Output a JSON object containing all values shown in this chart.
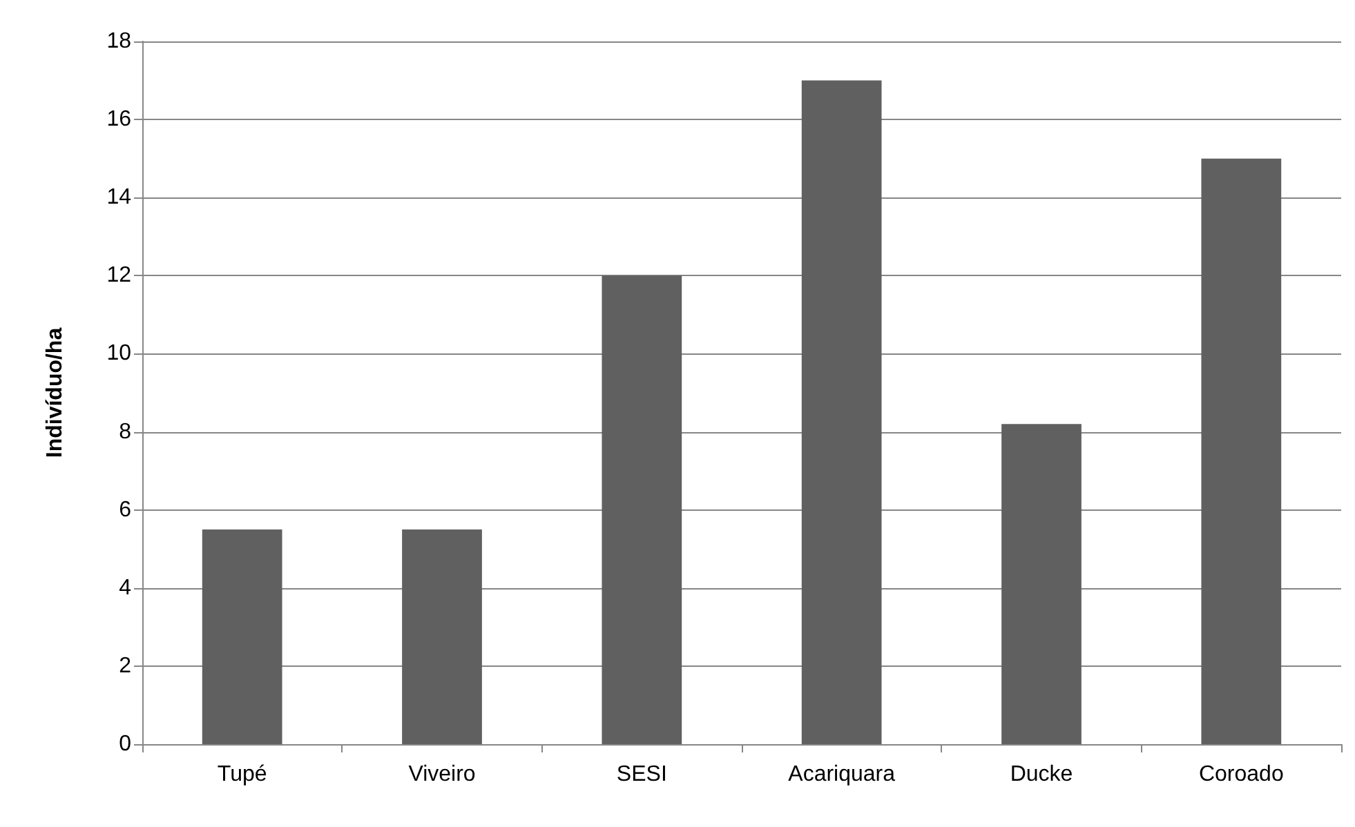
{
  "chart_data": {
    "type": "bar",
    "ylabel": "Indivíduo/ha",
    "categories": [
      "Tupé",
      "Viveiro",
      "SESI",
      "Acariquara",
      "Ducke",
      "Coroado"
    ],
    "values": [
      5.5,
      5.5,
      12,
      17,
      8.2,
      15
    ],
    "color": "#606060",
    "ylim": [
      0,
      18
    ],
    "yticks": [
      0,
      2,
      4,
      6,
      8,
      10,
      12,
      14,
      16,
      18
    ],
    "grid": "y"
  }
}
